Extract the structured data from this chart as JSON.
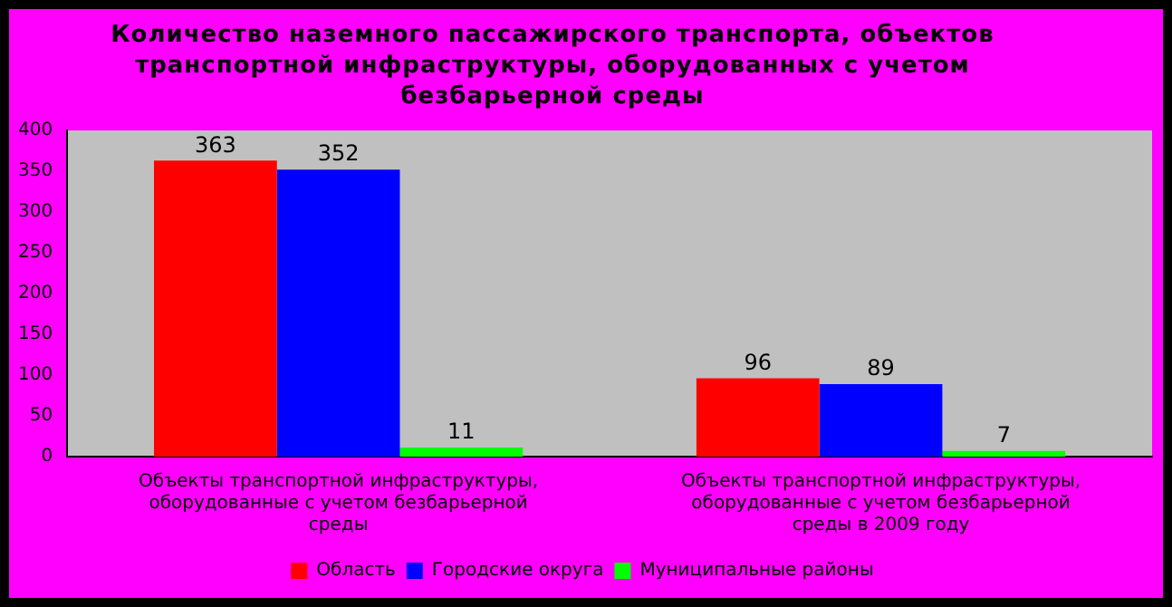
{
  "chart_data": {
    "type": "bar",
    "title": "Количество наземного пассажирского транспорта, объектов транспортной инфраструктуры, оборудованных с учетом безбарьерной среды",
    "categories": [
      "Объекты транспортной инфраструктуры, оборудованные с учетом безбарьерной среды",
      "Объекты транспортной инфраструктуры, оборудованные с учетом безбарьерной среды в 2009 году"
    ],
    "series": [
      {
        "name": "Область",
        "color": "#ff0000",
        "values": [
          363,
          96
        ]
      },
      {
        "name": "Городские округа",
        "color": "#0000ff",
        "values": [
          352,
          89
        ]
      },
      {
        "name": "Муниципальные районы",
        "color": "#00ff00",
        "values": [
          11,
          7
        ]
      }
    ],
    "ylim": [
      0,
      400
    ],
    "yticks": [
      0,
      50,
      100,
      150,
      200,
      250,
      300,
      350,
      400
    ],
    "grid": false,
    "legend": "bottom",
    "data_labels": true
  }
}
